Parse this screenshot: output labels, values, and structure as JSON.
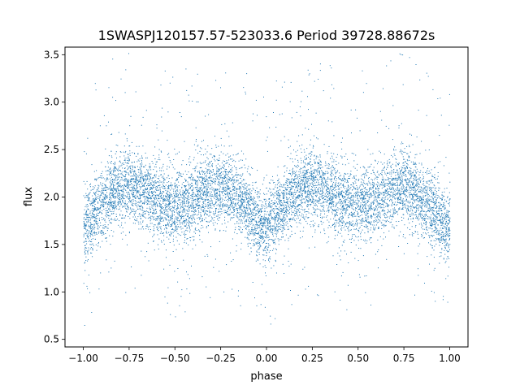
{
  "chart_data": {
    "type": "scatter",
    "title": "1SWASPJ120157.57-523033.6 Period 39728.88672s",
    "xlabel": "phase",
    "ylabel": "flux",
    "xlim": [
      -1.1,
      1.1
    ],
    "ylim": [
      0.42,
      3.58
    ],
    "xticks": [
      -1.0,
      -0.75,
      -0.5,
      -0.25,
      0.0,
      0.25,
      0.5,
      0.75,
      1.0
    ],
    "xtick_labels": [
      "−1.00",
      "−0.75",
      "−0.50",
      "−0.25",
      "0.00",
      "0.25",
      "0.50",
      "0.75",
      "1.00"
    ],
    "yticks": [
      0.5,
      1.0,
      1.5,
      2.0,
      2.5,
      3.0,
      3.5
    ],
    "ytick_labels": [
      "0.5",
      "1.0",
      "1.5",
      "2.0",
      "2.5",
      "3.0",
      "3.5"
    ],
    "grid": false,
    "legend": "none",
    "point_color": "#1f77b4",
    "series": [
      {
        "x": [
          -1.0,
          -0.95,
          -0.9,
          -0.85,
          -0.8,
          -0.75,
          -0.7,
          -0.65,
          -0.6,
          -0.55,
          -0.5,
          -0.45,
          -0.4,
          -0.35,
          -0.3,
          -0.25,
          -0.2,
          -0.15,
          -0.1,
          -0.05,
          0.0,
          0.05,
          0.1,
          0.15,
          0.2,
          0.25,
          0.3,
          0.35,
          0.4,
          0.45,
          0.5,
          0.55,
          0.6,
          0.65,
          0.7,
          0.75,
          0.8,
          0.85,
          0.9,
          0.95,
          1.0
        ],
        "y_center": [
          1.68,
          1.82,
          1.95,
          2.05,
          2.1,
          2.12,
          2.1,
          2.03,
          1.97,
          1.93,
          1.9,
          1.93,
          1.97,
          2.03,
          2.08,
          2.1,
          2.06,
          1.98,
          1.88,
          1.76,
          1.68,
          1.82,
          1.95,
          2.05,
          2.1,
          2.12,
          2.1,
          2.03,
          1.97,
          1.93,
          1.9,
          1.93,
          1.97,
          2.03,
          2.08,
          2.1,
          2.06,
          1.98,
          1.88,
          1.76,
          1.68
        ],
        "y_spread": 0.35
      }
    ]
  }
}
